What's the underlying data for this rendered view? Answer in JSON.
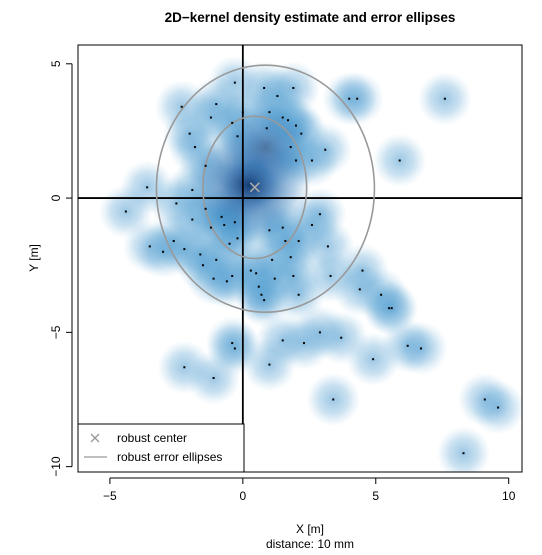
{
  "chart_data": {
    "type": "scatter",
    "title": "2D−kernel density estimate and error ellipses",
    "xlabel": "X [m]",
    "xlabel2": "distance: 10 mm",
    "ylabel": "Y [m]",
    "xlim": [
      -6.2,
      10.5
    ],
    "ylim": [
      -10.2,
      5.7
    ],
    "x_ticks": [
      -5,
      0,
      5,
      10
    ],
    "x_tick_labels": [
      "−5",
      "0",
      "5",
      "10"
    ],
    "y_ticks": [
      -10,
      -5,
      0,
      5
    ],
    "y_tick_labels": [
      "−10",
      "−5",
      "0",
      "5"
    ],
    "reference_lines": {
      "x": 0,
      "y": 0
    },
    "density_colormap": [
      "#ffffff",
      "#6aaed6",
      "#08306b"
    ],
    "point_color": "#000000",
    "ellipse_color": "#999999",
    "robust_center": {
      "x": 0.45,
      "y": 0.4
    },
    "ellipses": [
      {
        "cx": 0.45,
        "cy": 0.4,
        "rx": 1.95,
        "ry": 2.65
      },
      {
        "cx": 0.85,
        "cy": 0.35,
        "rx": 4.1,
        "ry": 4.6
      }
    ],
    "points": [
      [
        -4.4,
        -0.5
      ],
      [
        -3.6,
        0.4
      ],
      [
        -3.5,
        -1.8
      ],
      [
        -3.0,
        -2.0
      ],
      [
        -2.6,
        -1.6
      ],
      [
        -2.5,
        -0.2
      ],
      [
        -2.3,
        3.4
      ],
      [
        -2.2,
        -1.9
      ],
      [
        -2.0,
        2.4
      ],
      [
        -1.9,
        0.3
      ],
      [
        -1.9,
        -0.8
      ],
      [
        -1.8,
        1.9
      ],
      [
        -1.6,
        -2.1
      ],
      [
        -1.5,
        -2.5
      ],
      [
        -1.4,
        -0.4
      ],
      [
        -1.4,
        1.2
      ],
      [
        -1.2,
        3.0
      ],
      [
        -1.2,
        -1.1
      ],
      [
        -1.1,
        -3.0
      ],
      [
        -1.0,
        3.5
      ],
      [
        -1.0,
        -2.3
      ],
      [
        -0.8,
        -0.7
      ],
      [
        -0.7,
        -1.0
      ],
      [
        -0.6,
        -3.1
      ],
      [
        -0.5,
        -1.7
      ],
      [
        -0.4,
        2.8
      ],
      [
        -0.4,
        -2.9
      ],
      [
        -0.3,
        -0.9
      ],
      [
        -0.3,
        4.3
      ],
      [
        -0.2,
        2.3
      ],
      [
        -0.2,
        -1.5
      ],
      [
        0.0,
        3.2
      ],
      [
        0.3,
        -2.7
      ],
      [
        0.5,
        -2.8
      ],
      [
        0.6,
        -3.3
      ],
      [
        0.7,
        -3.6
      ],
      [
        0.8,
        4.1
      ],
      [
        0.8,
        -3.8
      ],
      [
        0.9,
        2.6
      ],
      [
        1.0,
        3.2
      ],
      [
        1.0,
        -1.2
      ],
      [
        1.1,
        -2.3
      ],
      [
        1.2,
        -3.0
      ],
      [
        1.3,
        3.8
      ],
      [
        1.5,
        3.0
      ],
      [
        1.5,
        -1.1
      ],
      [
        1.6,
        -1.6
      ],
      [
        1.7,
        2.9
      ],
      [
        1.8,
        1.9
      ],
      [
        1.8,
        -2.2
      ],
      [
        1.9,
        4.1
      ],
      [
        1.9,
        -2.9
      ],
      [
        2.0,
        1.4
      ],
      [
        2.0,
        2.7
      ],
      [
        2.1,
        -1.6
      ],
      [
        2.1,
        -3.6
      ],
      [
        2.2,
        2.4
      ],
      [
        2.3,
        -5.4
      ],
      [
        2.6,
        1.4
      ],
      [
        2.6,
        -1.0
      ],
      [
        2.9,
        -0.6
      ],
      [
        2.9,
        -5.0
      ],
      [
        3.1,
        1.8
      ],
      [
        3.2,
        -1.8
      ],
      [
        3.3,
        -2.9
      ],
      [
        3.4,
        -7.5
      ],
      [
        3.7,
        -5.2
      ],
      [
        4.0,
        3.7
      ],
      [
        4.3,
        3.7
      ],
      [
        4.4,
        -3.4
      ],
      [
        4.5,
        -2.7
      ],
      [
        4.9,
        -6.0
      ],
      [
        5.2,
        -3.6
      ],
      [
        5.5,
        -4.1
      ],
      [
        5.9,
        1.4
      ],
      [
        6.2,
        -5.5
      ],
      [
        6.7,
        -5.6
      ],
      [
        7.6,
        3.7
      ],
      [
        8.3,
        -9.5
      ],
      [
        9.1,
        -7.5
      ],
      [
        9.6,
        -7.8
      ],
      [
        -2.2,
        -6.3
      ],
      [
        -1.1,
        -6.7
      ],
      [
        1.0,
        -6.2
      ],
      [
        -0.4,
        -5.4
      ],
      [
        -0.3,
        -5.6
      ],
      [
        5.6,
        -4.1
      ],
      [
        1.5,
        -5.3
      ]
    ],
    "legend": {
      "position": "bottom-left",
      "entries": [
        {
          "label": "robust center",
          "symbol": "cross",
          "color": "#999999"
        },
        {
          "label": "robust error ellipses",
          "symbol": "line",
          "color": "#999999"
        }
      ]
    }
  }
}
